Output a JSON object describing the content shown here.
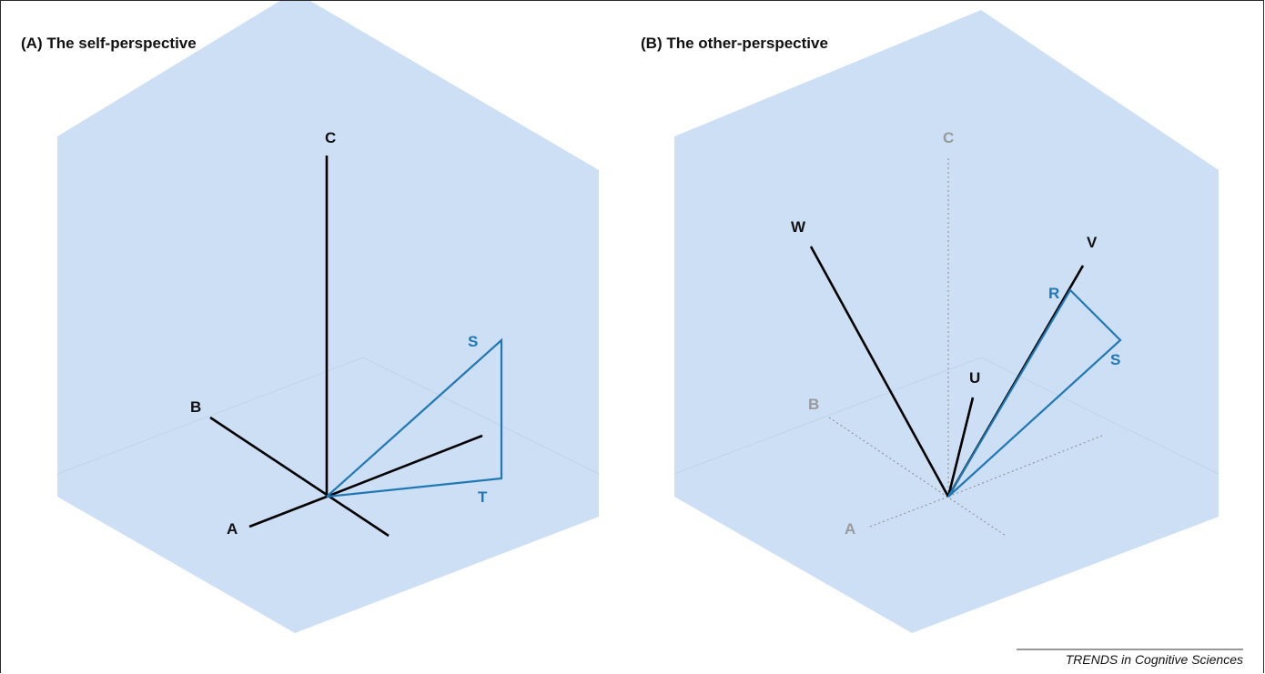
{
  "panels": {
    "a": {
      "title": "(A)  The self-perspective",
      "labels": {
        "c": "C",
        "b": "B",
        "a": "A",
        "s": "S",
        "t": "T"
      }
    },
    "b": {
      "title": "(B)  The other-perspective",
      "labels": {
        "c": "C",
        "b": "B",
        "a": "A",
        "w": "W",
        "v": "V",
        "r": "R",
        "s": "S",
        "u": "U"
      }
    }
  },
  "credit": "TRENDS in Cognitive Sciences",
  "colors": {
    "hexagon": "#cddff5",
    "blue": "#1f78b4",
    "black": "#111111",
    "grey": "#9a9a9a"
  }
}
